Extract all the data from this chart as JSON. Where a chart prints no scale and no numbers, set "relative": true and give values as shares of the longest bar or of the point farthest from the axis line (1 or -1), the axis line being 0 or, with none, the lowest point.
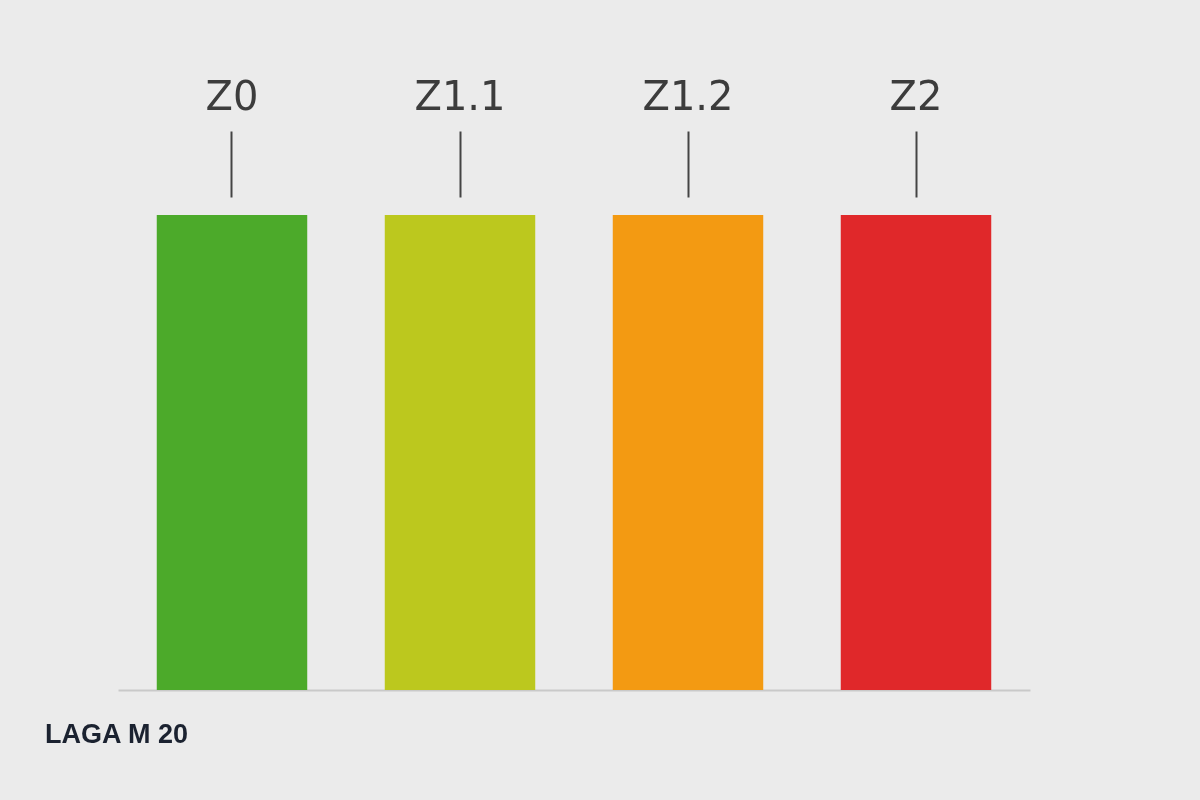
{
  "chart_data": {
    "type": "bar",
    "title": "LAGA M 20",
    "categories": [
      "Z0",
      "Z1.1",
      "Z1.2",
      "Z2"
    ],
    "values": [
      1,
      1,
      1,
      1
    ],
    "colors": [
      "#4caa2a",
      "#bcc81e",
      "#f39a12",
      "#e0282a"
    ],
    "relative": true
  }
}
